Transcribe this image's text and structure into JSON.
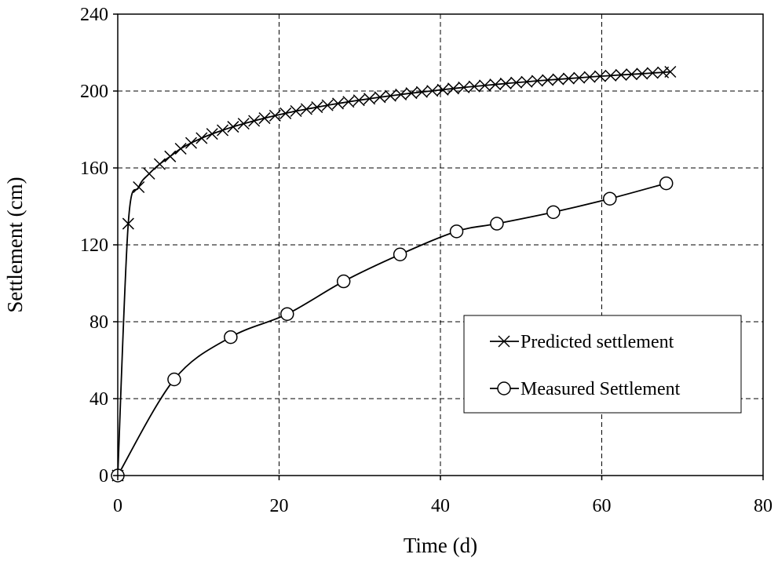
{
  "chart_data": {
    "type": "line",
    "title": "",
    "xlabel": "Time (d)",
    "ylabel": "Settlement (cm)",
    "xlim": [
      0,
      80
    ],
    "ylim": [
      0,
      240
    ],
    "xticks": [
      0,
      20,
      40,
      60,
      80
    ],
    "yticks": [
      0,
      40,
      80,
      120,
      160,
      200,
      240
    ],
    "grid": true,
    "legend_position": "lower-right",
    "series": [
      {
        "name": "Predicted settlement",
        "marker": "x",
        "x": [
          0,
          1.3,
          2.6,
          3.9,
          5.2,
          6.5,
          7.8,
          9.1,
          10.4,
          11.7,
          13.0,
          14.3,
          15.6,
          16.9,
          18.2,
          19.5,
          20.8,
          22.1,
          23.4,
          24.7,
          26.0,
          27.3,
          28.6,
          29.9,
          31.2,
          32.5,
          33.8,
          35.1,
          36.4,
          37.7,
          39.0,
          40.3,
          41.6,
          42.9,
          44.2,
          45.5,
          46.8,
          48.1,
          49.4,
          50.7,
          52.0,
          53.3,
          54.6,
          55.9,
          57.2,
          58.5,
          59.8,
          61.1,
          62.4,
          63.7,
          65.0,
          66.3,
          67.6,
          68.5
        ],
        "y": [
          0,
          131,
          150,
          157,
          162,
          166,
          170,
          173,
          175.5,
          177.7,
          179.6,
          181.4,
          183,
          184.5,
          185.9,
          187.2,
          188.4,
          189.6,
          190.6,
          191.6,
          192.6,
          193.5,
          194.4,
          195.2,
          196,
          196.8,
          197.5,
          198.2,
          198.9,
          199.5,
          200.1,
          200.7,
          201.3,
          201.9,
          202.4,
          202.9,
          203.4,
          203.9,
          204.4,
          204.8,
          205.3,
          205.7,
          206.1,
          206.5,
          206.9,
          207.3,
          207.7,
          208,
          208.4,
          208.7,
          209,
          209.4,
          209.7,
          210
        ]
      },
      {
        "name": "Measured Settlement",
        "marker": "o",
        "x": [
          0,
          7,
          14,
          21,
          28,
          35,
          42,
          47,
          54,
          61,
          68
        ],
        "y": [
          0,
          50,
          72,
          84,
          101,
          115,
          127,
          131,
          137,
          144,
          152
        ]
      }
    ]
  }
}
